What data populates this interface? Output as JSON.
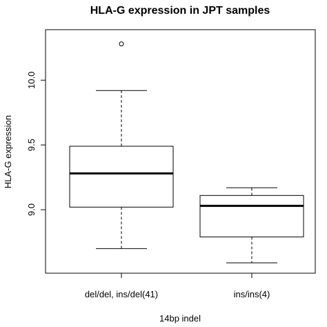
{
  "chart_data": {
    "type": "boxplot",
    "title": "HLA-G expression in JPT samples",
    "xlabel": "14bp indel",
    "ylabel": "HLA-G expression",
    "categories": [
      "del/del, ins/del(41)",
      "ins/ins(4)"
    ],
    "y_ticks": [
      "9.0",
      "9.5",
      "10.0"
    ],
    "ylim": [
      8.51,
      10.39
    ],
    "boxes": [
      {
        "whisker_low": 8.7,
        "q1": 9.02,
        "median": 9.28,
        "q3": 9.49,
        "whisker_high": 9.92,
        "outliers": [
          10.28
        ]
      },
      {
        "whisker_low": 8.59,
        "q1": 8.79,
        "median": 9.03,
        "q3": 9.11,
        "whisker_high": 9.17,
        "outliers": []
      }
    ]
  }
}
